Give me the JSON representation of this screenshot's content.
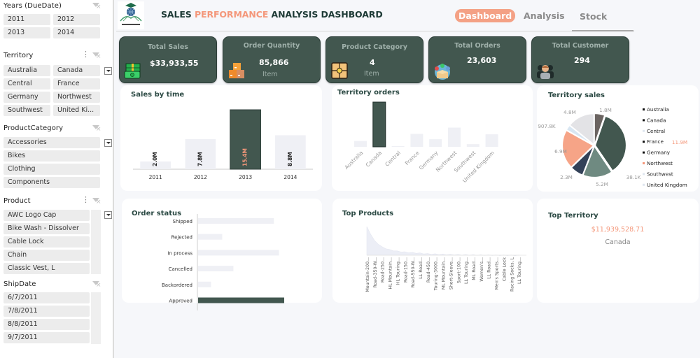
{
  "header": {
    "title_part1": "SALES ",
    "title_accent": "PERFORMANCE",
    "title_part2": " ANALYSIS DASHBOARD",
    "logo_caption": "رواد مصر الرقمية",
    "nav": [
      {
        "label": "Dashboard",
        "active": true
      },
      {
        "label": "Analysis",
        "active": false
      },
      {
        "label": "Stock",
        "active": false
      }
    ]
  },
  "slicers": {
    "years": {
      "title": "Years (DueDate)",
      "items": [
        "2011",
        "2012",
        "2013",
        "2014"
      ]
    },
    "territory": {
      "title": "Territory",
      "items": [
        "Australia",
        "Canada",
        "Central",
        "France",
        "Germany",
        "Northwest",
        "Southwest",
        "United Ki..."
      ]
    },
    "product_category": {
      "title": "ProductCategory",
      "items": [
        "Accessories",
        "Bikes",
        "Clothing",
        "Components"
      ]
    },
    "product": {
      "title": "Product",
      "items": [
        "AWC Logo Cap",
        "Bike Wash - Dissolver",
        "Cable Lock",
        "Chain",
        "Classic Vest, L"
      ]
    },
    "ship_date": {
      "title": "ShipDate",
      "items": [
        "6/7/2011",
        "7/8/2011",
        "8/8/2011",
        "9/7/2011"
      ]
    }
  },
  "kpis": [
    {
      "title": "Total Sales",
      "value": "$33,933,55",
      "unit": "",
      "icon": "money-icon"
    },
    {
      "title": "Order Quantity",
      "value": "85,866",
      "unit": "Item",
      "icon": "boxes-icon"
    },
    {
      "title": "Product Category",
      "value": "4",
      "unit": "Item",
      "icon": "package-icon"
    },
    {
      "title": "Total Orders",
      "value": "23,603",
      "unit": "",
      "icon": "order-box-icon"
    },
    {
      "title": "Total Customer",
      "value": "294",
      "unit": "",
      "icon": "customers-icon"
    }
  ],
  "top_territory": {
    "title": "Top Territory",
    "value": "$11,939,528.71",
    "name": "Canada"
  },
  "colors": {
    "dark_green": "#42574f",
    "accent": "#f4977a",
    "light_bar": "#eff0f5"
  },
  "chart_data": [
    {
      "id": "sales_by_time",
      "type": "bar",
      "title": "Sales by time",
      "categories": [
        "2011",
        "2012",
        "2013",
        "2014"
      ],
      "values": [
        2.0,
        7.8,
        15.4,
        8.8
      ],
      "labels": [
        "2.0M",
        "7.8M",
        "15.4M",
        "8.8M"
      ],
      "highlight_index": 2,
      "ylim": [
        0,
        15.4
      ],
      "unit": "M",
      "grid": false
    },
    {
      "id": "territory_orders",
      "type": "bar",
      "title": "Territory orders",
      "categories": [
        "Australia",
        "Canada",
        "Central",
        "France",
        "Germany",
        "Northwest",
        "Southwest",
        "United Kingdom"
      ],
      "values": [
        13,
        100,
        1,
        29,
        17,
        43,
        6,
        28
      ],
      "highlight_index": 1,
      "ylim": [
        0,
        100
      ],
      "grid": false
    },
    {
      "id": "territory_sales",
      "type": "pie",
      "title": "Territory sales",
      "categories": [
        "Australia",
        "Canada",
        "Central",
        "France",
        "Germany",
        "Northwest",
        "Southwest",
        "United Kingdom"
      ],
      "values": [
        1.8,
        11.9,
        0.0381,
        5.2,
        2.3,
        6.9,
        0.9078,
        4.8
      ],
      "labels": [
        "1.8M",
        "11.9M",
        "38.1K",
        "5.2M",
        "2.3M",
        "6.9M",
        "907.8K",
        "4.8M"
      ],
      "slice_colors": [
        "#6b6461",
        "#42574f",
        "#eef1f6",
        "#6f8a81",
        "#334158",
        "#f6a487",
        "#d8e6f2",
        "#e3e3e6"
      ],
      "legend_position": "right"
    },
    {
      "id": "order_status",
      "type": "bar",
      "orientation": "horizontal",
      "title": "Order status",
      "categories": [
        "Shipped",
        "Rejected",
        "In process",
        "Cancelled",
        "Backordered",
        "Approved"
      ],
      "values": [
        88,
        28,
        94,
        41,
        15,
        100
      ],
      "highlight_index": 5,
      "xlim": [
        0,
        100
      ],
      "grid": false
    },
    {
      "id": "top_products",
      "type": "area",
      "title": "Top Products",
      "categories": [
        "Mountain-200...",
        "Road-350-W...",
        "Road-250...",
        "HL Mountain...",
        "HL Touring...",
        "Road-150...",
        "Road-550-W...",
        "LL Road...",
        "Road-450...",
        "Touring-3000...",
        "ML Mountain...",
        "Short-Sleeve...",
        "Sport-100...",
        "LL Touring...",
        "ML Road...",
        "Women's...",
        "LL Road...",
        "Men's Sports...",
        "Cable Lock",
        "Racing Socks, L",
        "LL Touring..."
      ],
      "values": [
        100,
        52,
        30,
        20,
        15,
        12,
        10,
        8,
        6,
        5,
        4,
        3.5,
        3,
        2.5,
        2,
        1.8,
        1.5,
        1.2,
        1,
        0.8,
        0.6
      ],
      "ylim": [
        0,
        100
      ],
      "grid": false
    }
  ]
}
